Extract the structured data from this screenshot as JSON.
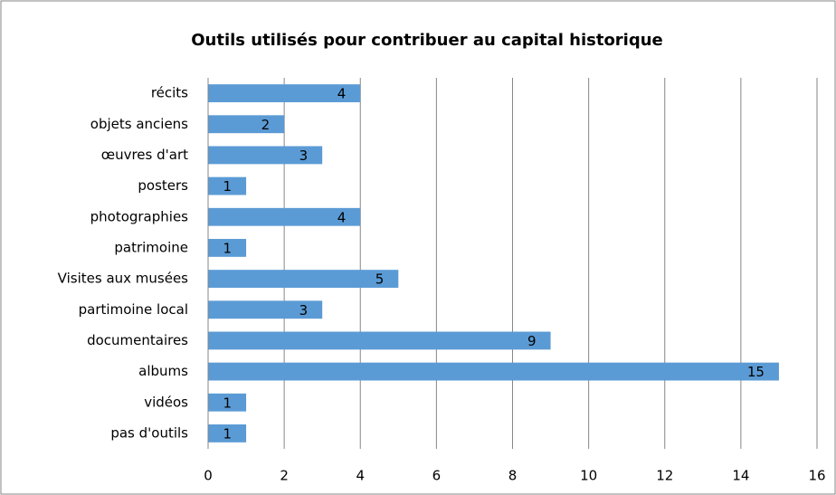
{
  "chart_data": {
    "type": "bar",
    "orientation": "horizontal",
    "title": "Outils utilisés pour contribuer au capital historique",
    "categories": [
      "récits",
      "objets anciens",
      "œuvres d'art",
      "posters",
      "photographies",
      "patrimoine",
      "Visites aux musées",
      "partimoine local",
      "documentaires",
      "albums",
      "vidéos",
      "pas d'outils"
    ],
    "values": [
      4,
      2,
      3,
      1,
      4,
      1,
      5,
      3,
      9,
      15,
      1,
      1
    ],
    "color": "#5b9bd5",
    "xlim": [
      0,
      16
    ],
    "xticks": [
      0,
      2,
      4,
      6,
      8,
      10,
      12,
      14,
      16
    ],
    "grid": true
  }
}
